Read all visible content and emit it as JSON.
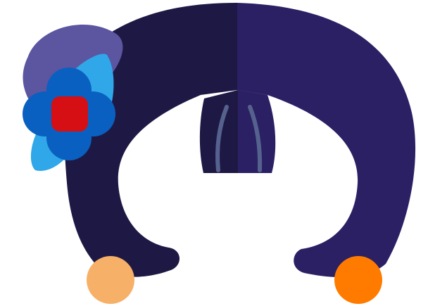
{
  "illustration": {
    "subject": "hair-with-flower-icon",
    "colors": {
      "background": "#ffffff",
      "hair_left": "#1e1944",
      "hair_right": "#2b2064",
      "hair_strand": "#56628e",
      "flower_back_petal": "#5c55a0",
      "flower_leaf": "#2fa7e8",
      "flower_petals": "#0a60c0",
      "flower_center": "#d50f14",
      "earring_left": "#f7b068",
      "earring_right": "#ff7b00"
    }
  }
}
